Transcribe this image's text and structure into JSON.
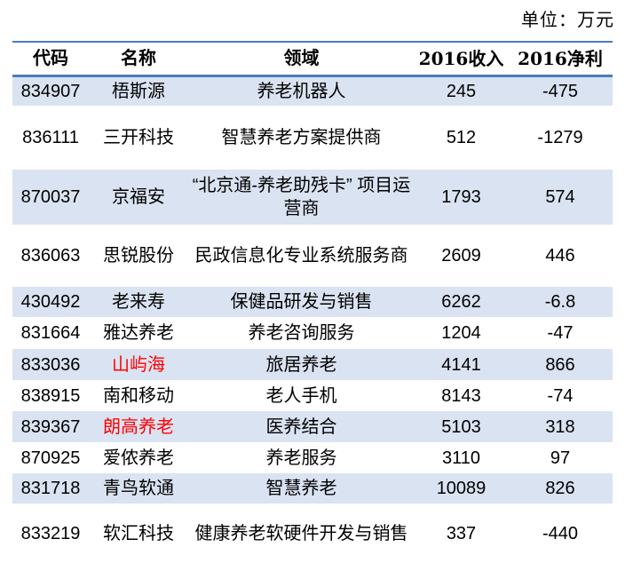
{
  "unit_label": "单位：万元",
  "colors": {
    "border_blue": "#4A7DBB",
    "stripe": "#DAE3F1",
    "highlight_red": "#FF0000",
    "text": "#000000"
  },
  "table": {
    "headers": {
      "code": "代码",
      "name": "名称",
      "field": "领域",
      "revenue": "2016收入",
      "profit": "2016净利"
    },
    "rows": [
      {
        "code": "834907",
        "name": "梧斯源",
        "field": "养老机器人",
        "revenue": "245",
        "profit": "-475",
        "name_red": false
      },
      {
        "code": "836111",
        "name": "三开科技",
        "field": "智慧养老方案提供商",
        "revenue": "512",
        "profit": "-1279",
        "name_red": false
      },
      {
        "code": "870037",
        "name": "京福安",
        "field": "“北京通-养老助残卡” 项目运营商",
        "revenue": "1793",
        "profit": "574",
        "name_red": false
      },
      {
        "code": "836063",
        "name": "思锐股份",
        "field": "民政信息化专业系统服务商",
        "revenue": "2609",
        "profit": "446",
        "name_red": false
      },
      {
        "code": "430492",
        "name": "老来寿",
        "field": "保健品研发与销售",
        "revenue": "6262",
        "profit": "-6.8",
        "name_red": false
      },
      {
        "code": "831664",
        "name": "雅达养老",
        "field": "养老咨询服务",
        "revenue": "1204",
        "profit": "-47",
        "name_red": false
      },
      {
        "code": "833036",
        "name": "山屿海",
        "field": "旅居养老",
        "revenue": "4141",
        "profit": "866",
        "name_red": true
      },
      {
        "code": "838915",
        "name": "南和移动",
        "field": "老人手机",
        "revenue": "8143",
        "profit": "-74",
        "name_red": false
      },
      {
        "code": "839367",
        "name": "朗高养老",
        "field": "医养结合",
        "revenue": "5103",
        "profit": "318",
        "name_red": true
      },
      {
        "code": "870925",
        "name": "爱侬养老",
        "field": "养老服务",
        "revenue": "3110",
        "profit": "97",
        "name_red": false
      },
      {
        "code": "831718",
        "name": "青鸟软通",
        "field": "智慧养老",
        "revenue": "10089",
        "profit": "826",
        "name_red": false
      },
      {
        "code": "833219",
        "name": "软汇科技",
        "field": "健康养老软硬件开发与销售",
        "revenue": "337",
        "profit": "-440",
        "name_red": false
      }
    ]
  },
  "chart_data": {
    "type": "table",
    "title": "",
    "unit": "单位：万元",
    "columns": [
      "代码",
      "名称",
      "领域",
      "2016收入",
      "2016净利"
    ],
    "rows": [
      [
        "834907",
        "梧斯源",
        "养老机器人",
        245,
        -475
      ],
      [
        "836111",
        "三开科技",
        "智慧养老方案提供商",
        512,
        -1279
      ],
      [
        "870037",
        "京福安",
        "“北京通-养老助残卡” 项目运营商",
        1793,
        574
      ],
      [
        "836063",
        "思锐股份",
        "民政信息化专业系统服务商",
        2609,
        446
      ],
      [
        "430492",
        "老来寿",
        "保健品研发与销售",
        6262,
        -6.8
      ],
      [
        "831664",
        "雅达养老",
        "养老咨询服务",
        1204,
        -47
      ],
      [
        "833036",
        "山屿海",
        "旅居养老",
        4141,
        866
      ],
      [
        "838915",
        "南和移动",
        "老人手机",
        8143,
        -74
      ],
      [
        "839367",
        "朗高养老",
        "医养结合",
        5103,
        318
      ],
      [
        "870925",
        "爱侬养老",
        "养老服务",
        3110,
        97
      ],
      [
        "831718",
        "青鸟软通",
        "智慧养老",
        10089,
        826
      ],
      [
        "833219",
        "软汇科技",
        "健康养老软硬件开发与销售",
        337,
        -440
      ]
    ],
    "highlighted_red_names": [
      "山屿海",
      "朗高养老"
    ],
    "layout": {
      "striped_rows": "odd",
      "stripe_color": "#DAE3F1",
      "rule_color": "#4A7DBB"
    }
  }
}
